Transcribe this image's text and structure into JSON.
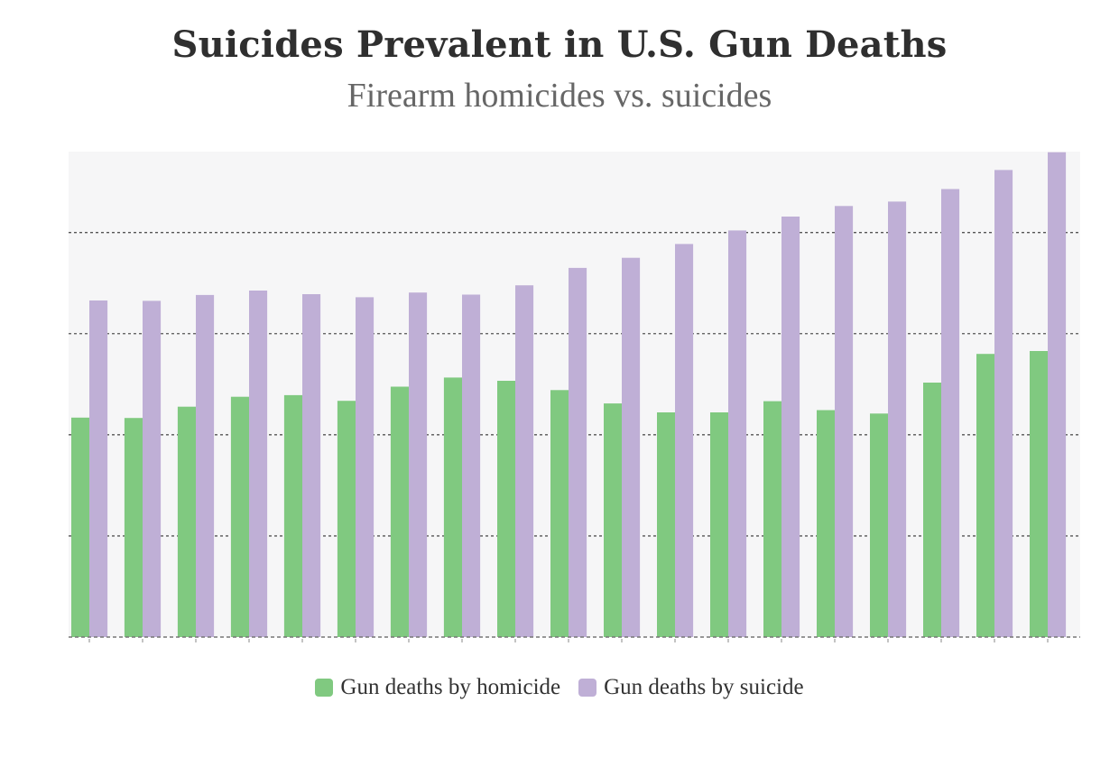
{
  "chart_data": {
    "type": "bar",
    "title": "Suicides Prevalent in U.S. Gun Deaths",
    "subtitle": "Firearm homicides vs. suicides",
    "xlabel": "",
    "ylabel": "",
    "categories": [
      "",
      "",
      "",
      "",
      "",
      "",
      "",
      "",
      "",
      "",
      "",
      "",
      "",
      "",
      "",
      "",
      "",
      "",
      ""
    ],
    "series": [
      {
        "name": "Gun deaths by homicide",
        "color": "#80c980",
        "values": [
          10850,
          10830,
          11390,
          11880,
          11960,
          11680,
          12380,
          12830,
          12670,
          12210,
          11550,
          11110,
          11110,
          11660,
          11220,
          11050,
          12580,
          14000,
          14140
        ]
      },
      {
        "name": "Gun deaths by suicide",
        "color": "#bfafd6",
        "values": [
          16640,
          16620,
          16910,
          17130,
          16950,
          16800,
          17030,
          16930,
          17390,
          18250,
          18750,
          19430,
          20100,
          20790,
          21310,
          21530,
          22150,
          23090,
          23970
        ]
      }
    ],
    "ylim": [
      0,
      24000
    ],
    "y_gridlines": [
      5000,
      10000,
      15000,
      20000
    ],
    "grid": true,
    "legend_position": "bottom-center"
  }
}
